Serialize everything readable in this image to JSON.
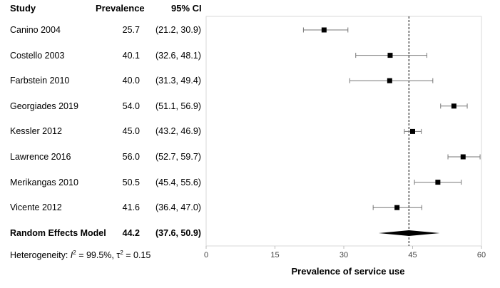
{
  "table": {
    "header_study": "Study",
    "header_prevalence": "Prevalence",
    "header_ci": "95% CI",
    "heterogeneity": {
      "prefix": "Heterogeneity: ",
      "i2_symbol": "I",
      "i2_value": " = 99.5%, ",
      "tau_symbol": "τ",
      "tau_value": " = 0.15"
    }
  },
  "chart_data": {
    "type": "forest",
    "xlabel": "Prevalence of service use",
    "xlim": [
      0,
      60
    ],
    "xticks": [
      "0",
      "15",
      "30",
      "45",
      "60"
    ],
    "reference_line": 44.2,
    "studies": [
      {
        "name": "Canino 2004",
        "prevalence": "25.7",
        "ci_text": "(21.2, 30.9)",
        "value": 25.7,
        "lo": 21.2,
        "hi": 30.9
      },
      {
        "name": "Costello 2003",
        "prevalence": "40.1",
        "ci_text": "(32.6, 48.1)",
        "value": 40.1,
        "lo": 32.6,
        "hi": 48.1
      },
      {
        "name": "Farbstein 2010",
        "prevalence": "40.0",
        "ci_text": "(31.3, 49.4)",
        "value": 40.0,
        "lo": 31.3,
        "hi": 49.4
      },
      {
        "name": "Georgiades 2019",
        "prevalence": "54.0",
        "ci_text": "(51.1, 56.9)",
        "value": 54.0,
        "lo": 51.1,
        "hi": 56.9
      },
      {
        "name": "Kessler 2012",
        "prevalence": "45.0",
        "ci_text": "(43.2, 46.9)",
        "value": 45.0,
        "lo": 43.2,
        "hi": 46.9
      },
      {
        "name": "Lawrence 2016",
        "prevalence": "56.0",
        "ci_text": "(52.7, 59.7)",
        "value": 56.0,
        "lo": 52.7,
        "hi": 59.7
      },
      {
        "name": "Merikangas 2010",
        "prevalence": "50.5",
        "ci_text": "(45.4, 55.6)",
        "value": 50.5,
        "lo": 45.4,
        "hi": 55.6
      },
      {
        "name": "Vicente 2012",
        "prevalence": "41.6",
        "ci_text": "(36.4, 47.0)",
        "value": 41.6,
        "lo": 36.4,
        "hi": 47.0
      }
    ],
    "summary": {
      "name": "Random Effects Model",
      "prevalence": "44.2",
      "ci_text": "(37.6, 50.9)",
      "value": 44.2,
      "lo": 37.6,
      "hi": 50.9
    }
  }
}
